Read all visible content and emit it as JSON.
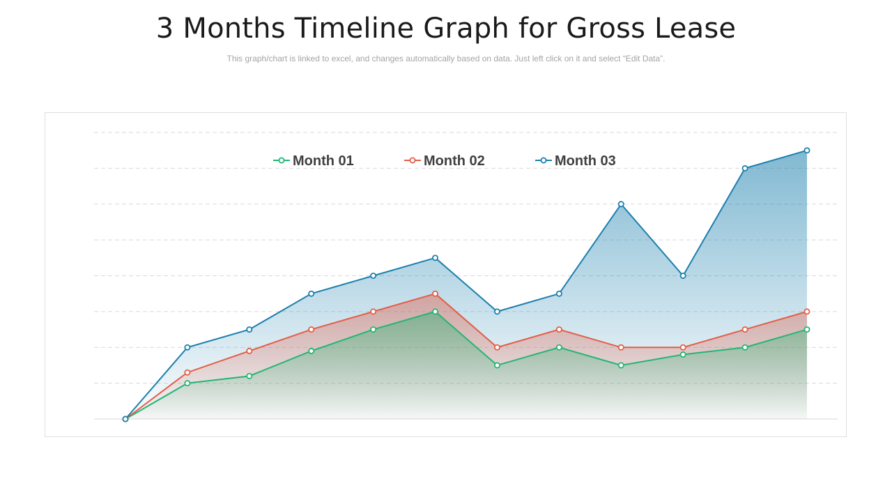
{
  "title": "3 Months Timeline Graph for Gross Lease",
  "subtitle": "This graph/chart is linked to excel, and changes automatically based on data. Just left click on it and select “Edit Data”.",
  "colors": {
    "month_01": "#22b573",
    "month_02": "#e35d46",
    "month_03": "#1a7fad",
    "grid": "#d9d9d9",
    "frame": "#dedede"
  },
  "chart_data": {
    "type": "area",
    "x": [
      1,
      2,
      3,
      4,
      5,
      6,
      7,
      8,
      9,
      10,
      11,
      12
    ],
    "ylim": [
      0,
      8
    ],
    "grid": true,
    "legend_position": "top-center",
    "series": [
      {
        "name": "Month 01",
        "values": [
          0,
          1.0,
          1.2,
          1.9,
          2.5,
          3.0,
          1.5,
          2.0,
          1.5,
          1.8,
          2.0,
          2.5
        ]
      },
      {
        "name": "Month 02",
        "values": [
          0,
          1.3,
          1.9,
          2.5,
          3.0,
          3.5,
          2.0,
          2.5,
          2.0,
          2.0,
          2.5,
          3.0
        ]
      },
      {
        "name": "Month 03",
        "values": [
          0,
          2.0,
          2.5,
          3.5,
          4.0,
          4.5,
          3.0,
          3.5,
          6.0,
          4.0,
          7.0,
          7.5
        ]
      }
    ]
  }
}
